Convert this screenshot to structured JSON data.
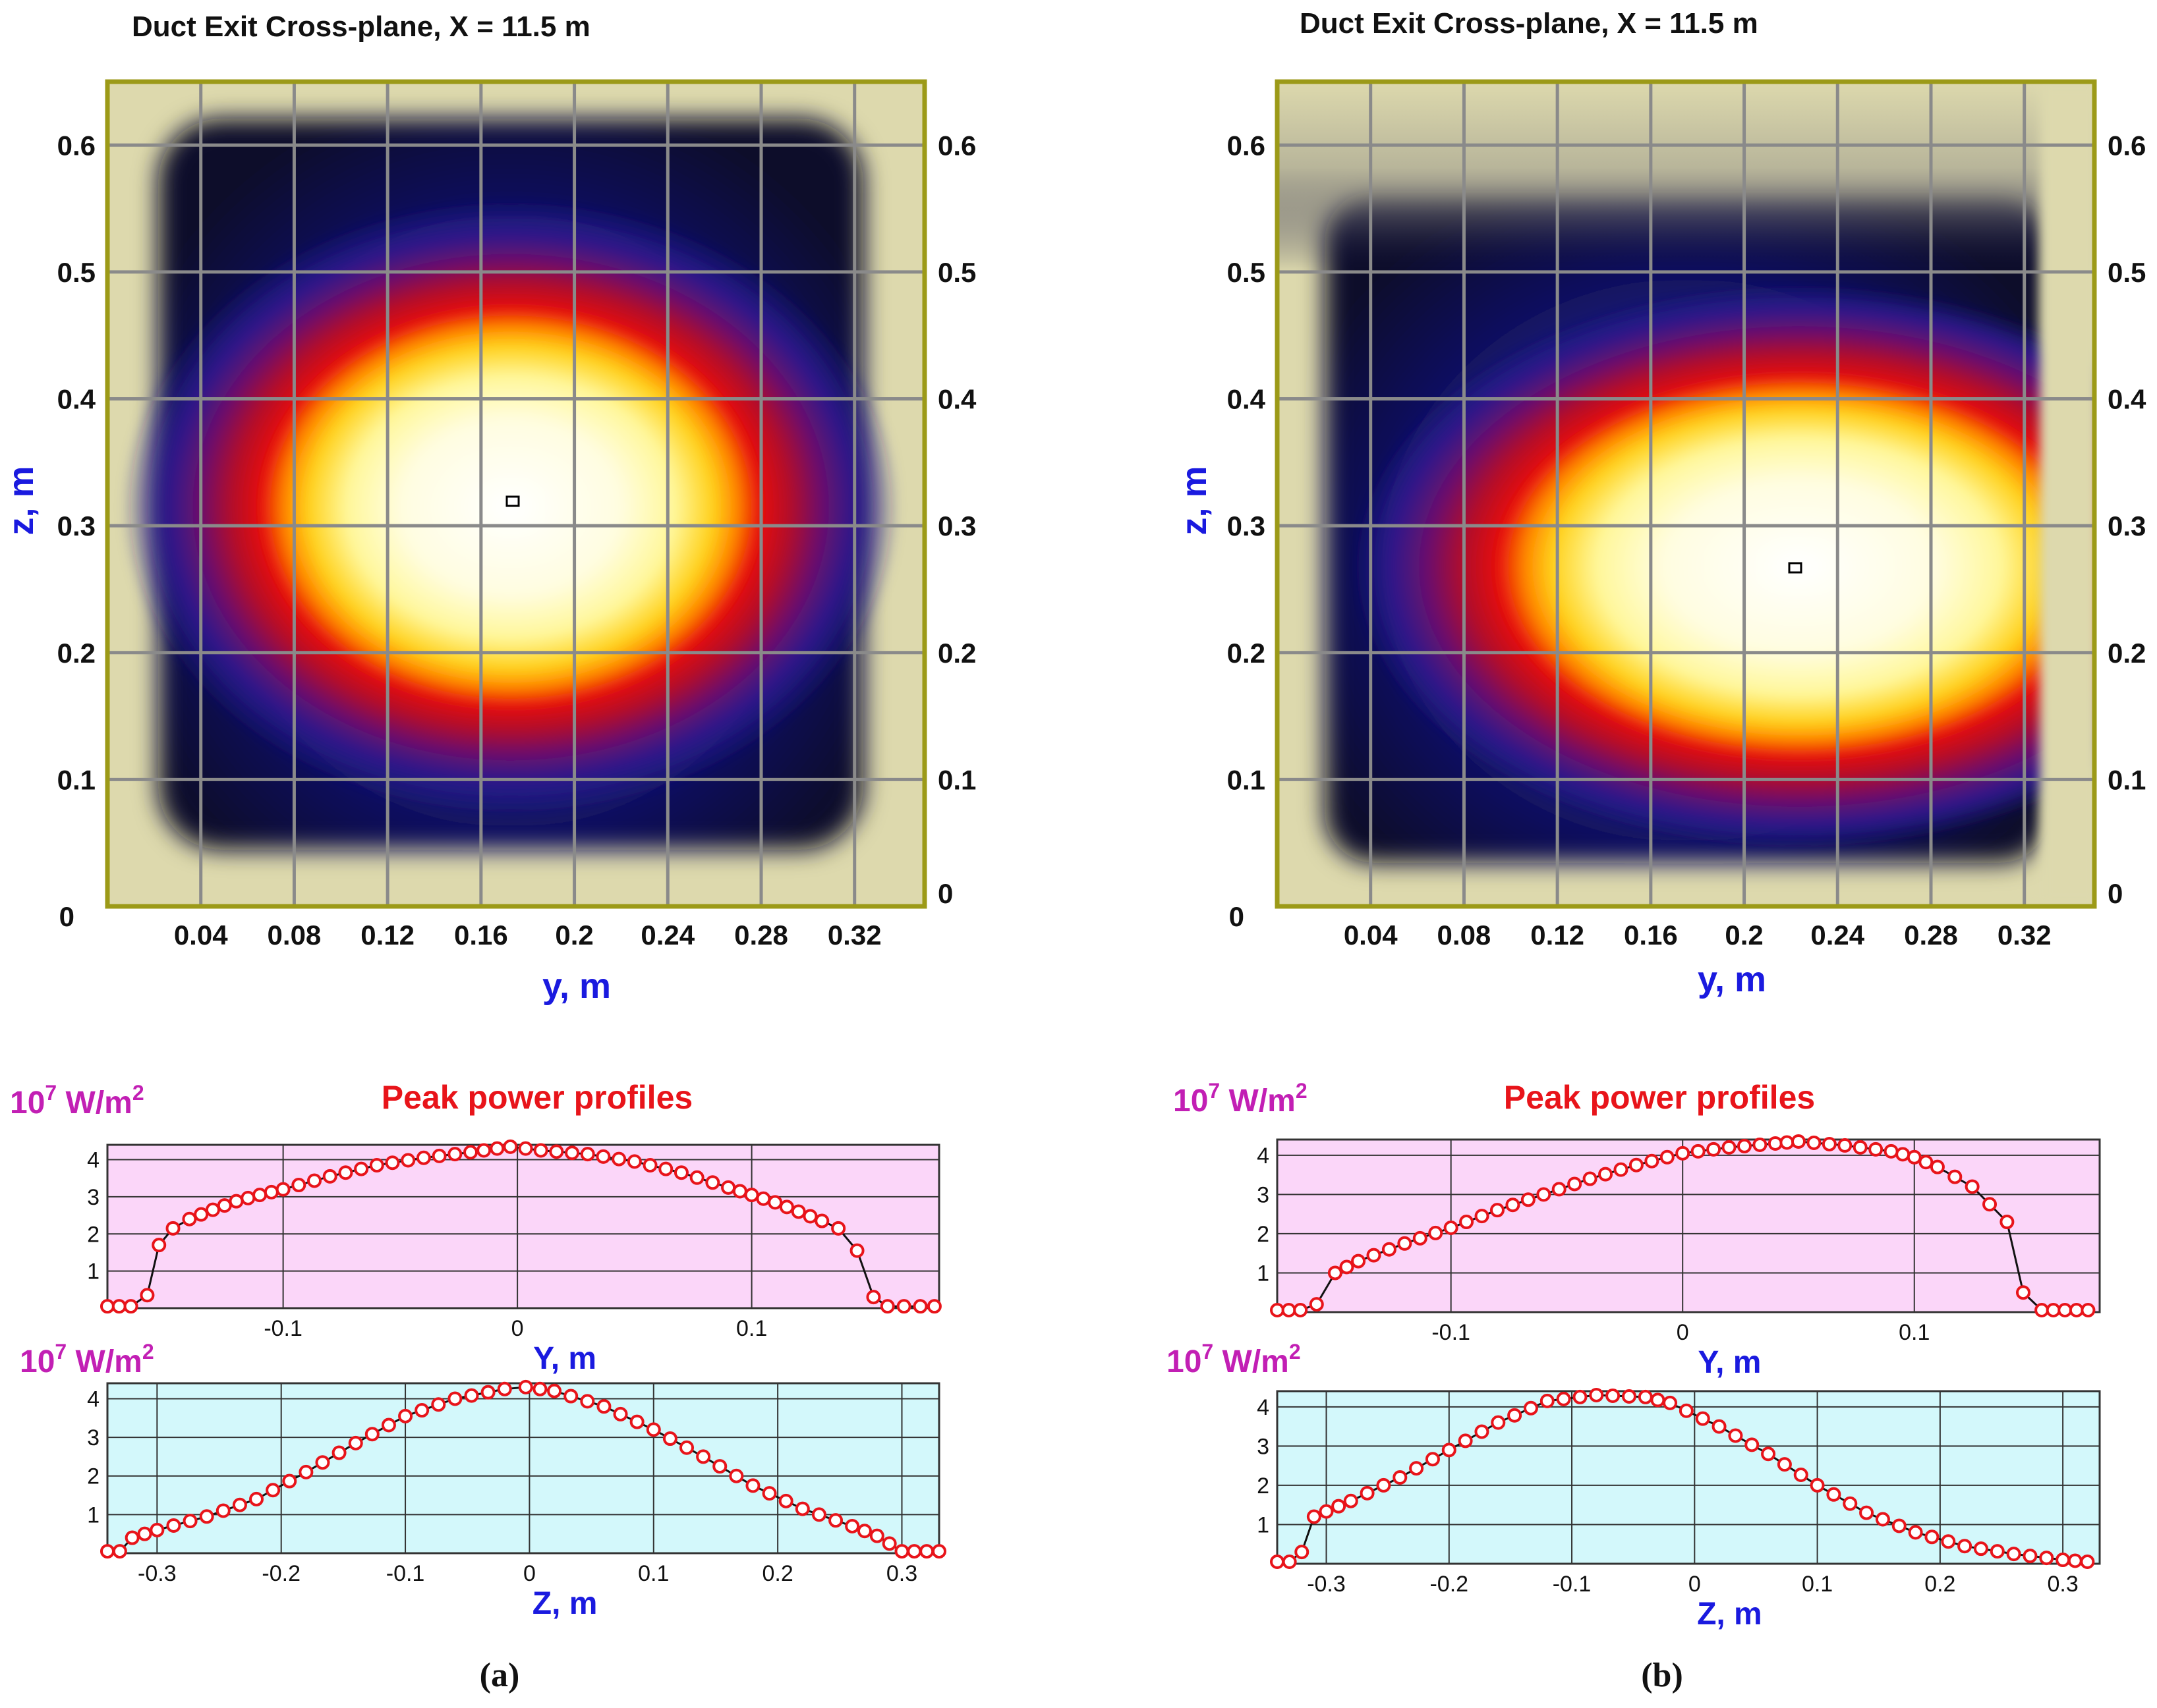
{
  "colors": {
    "frame": "#9c9a18",
    "beige": "#ddd9ad",
    "grid": "#8a8a8a",
    "axis_label": "#1a1adf",
    "unit_label": "#c21fb4",
    "profile_title": "#e8141a",
    "curve": "#e8141a",
    "bg_y_profile": "#fbd6f9",
    "bg_z_profile": "#d3f8fb"
  },
  "panels": [
    {
      "id": "a",
      "caption": "(a)",
      "heatmap": {
        "title": "Duct Exit Cross-plane, X = 11.5 m",
        "xlabel": "y, m",
        "ylabel": "z, m",
        "x_ticks": [
          "0.04",
          "0.08",
          "0.12",
          "0.16",
          "0.2",
          "0.24",
          "0.28",
          "0.32"
        ],
        "y_ticks": [
          "0.1",
          "0.2",
          "0.3",
          "0.4",
          "0.5",
          "0.6"
        ],
        "origin_label": "0",
        "right_zero_label": "0"
      },
      "profile_title": "Peak power profiles",
      "unit_base": "10",
      "unit_exp": "7",
      "unit_mid": " W/m",
      "unit_exp2": "2",
      "y_profile_xlabel": "Y, m",
      "y_profile_x_ticks": [
        "-0.1",
        "0",
        "0.1"
      ],
      "y_profile_y_ticks": [
        "1",
        "2",
        "3",
        "4"
      ],
      "z_profile_xlabel": "Z, m",
      "z_profile_x_ticks": [
        "-0.3",
        "-0.2",
        "-0.1",
        "0",
        "0.1",
        "0.2",
        "0.3"
      ],
      "z_profile_y_ticks": [
        "1",
        "2",
        "3",
        "4"
      ]
    },
    {
      "id": "b",
      "caption": "(b)",
      "heatmap": {
        "title": "Duct Exit Cross-plane, X = 11.5 m",
        "xlabel": "y, m",
        "ylabel": "z, m",
        "x_ticks": [
          "0.04",
          "0.08",
          "0.12",
          "0.16",
          "0.2",
          "0.24",
          "0.28",
          "0.32"
        ],
        "y_ticks": [
          "0.1",
          "0.2",
          "0.3",
          "0.4",
          "0.5",
          "0.6"
        ],
        "origin_label": "0",
        "right_zero_label": "0"
      },
      "profile_title": "Peak power profiles",
      "unit_base": "10",
      "unit_exp": "7",
      "unit_mid": " W/m",
      "unit_exp2": "2",
      "y_profile_xlabel": "Y, m",
      "y_profile_x_ticks": [
        "-0.1",
        "0",
        "0.1"
      ],
      "y_profile_y_ticks": [
        "1",
        "2",
        "3",
        "4"
      ],
      "z_profile_xlabel": "Z, m",
      "z_profile_x_ticks": [
        "-0.3",
        "-0.2",
        "-0.1",
        "0",
        "0.1",
        "0.2",
        "0.3"
      ],
      "z_profile_y_ticks": [
        "1",
        "2",
        "3",
        "4"
      ]
    }
  ],
  "chart_data": [
    {
      "panel": "a",
      "type": "heatmap",
      "title": "Duct Exit Cross-plane, X = 11.5 m",
      "xlabel": "y, m",
      "ylabel": "z, m",
      "xlim": [
        0,
        0.35
      ],
      "ylim": [
        0,
        0.65
      ],
      "peak_marker": {
        "y": 0.174,
        "z": 0.318
      },
      "hot_spot": {
        "center_y": 0.18,
        "center_z": 0.31,
        "half_width_y": 0.128,
        "half_width_z": 0.097
      },
      "colormap": [
        "#ffffff",
        "#fff79a",
        "#ffd11a",
        "#ff8a00",
        "#e8110a",
        "#a20a3c",
        "#4b0d73",
        "#1a1a8c",
        "#0b0b3d"
      ]
    },
    {
      "panel": "a",
      "type": "line",
      "title": "Peak power profiles",
      "xlabel": "Y, m",
      "ylabel": "10^7 W/m^2",
      "xlim": [
        -0.175,
        0.18
      ],
      "ylim": [
        0,
        4.4
      ],
      "x": [
        -0.175,
        -0.17,
        -0.165,
        -0.158,
        -0.153,
        -0.147,
        -0.14,
        -0.13,
        -0.12,
        -0.11,
        -0.1,
        -0.08,
        -0.06,
        -0.04,
        -0.02,
        -0.003,
        0.01,
        0.03,
        0.05,
        0.07,
        0.09,
        0.1,
        0.11,
        0.12,
        0.13,
        0.137,
        0.145,
        0.152,
        0.158,
        0.165,
        0.172,
        0.178
      ],
      "y": [
        0.05,
        0.05,
        0.05,
        0.35,
        1.7,
        2.15,
        2.4,
        2.65,
        2.88,
        3.05,
        3.2,
        3.55,
        3.85,
        4.05,
        4.2,
        4.35,
        4.25,
        4.15,
        3.95,
        3.65,
        3.25,
        3.05,
        2.85,
        2.6,
        2.35,
        2.15,
        1.55,
        0.3,
        0.05,
        0.05,
        0.05,
        0.05
      ]
    },
    {
      "panel": "a",
      "type": "line",
      "xlabel": "Z, m",
      "ylabel": "10^7 W/m^2",
      "xlim": [
        -0.34,
        0.33
      ],
      "ylim": [
        0,
        4.4
      ],
      "x": [
        -0.34,
        -0.33,
        -0.32,
        -0.3,
        -0.26,
        -0.22,
        -0.18,
        -0.14,
        -0.1,
        -0.06,
        -0.02,
        -0.003,
        0.02,
        0.06,
        0.1,
        0.14,
        0.18,
        0.22,
        0.26,
        0.28,
        0.3,
        0.32,
        0.33
      ],
      "y": [
        0.05,
        0.05,
        0.4,
        0.6,
        0.95,
        1.4,
        2.1,
        2.85,
        3.55,
        4.0,
        4.25,
        4.3,
        4.2,
        3.8,
        3.2,
        2.5,
        1.75,
        1.15,
        0.7,
        0.45,
        0.05,
        0.05,
        0.05
      ]
    },
    {
      "panel": "b",
      "type": "heatmap",
      "title": "Duct Exit Cross-plane, X = 11.5 m",
      "xlabel": "y, m",
      "ylabel": "z, m",
      "xlim": [
        0,
        0.35
      ],
      "ylim": [
        0,
        0.65
      ],
      "peak_marker": {
        "y": 0.222,
        "z": 0.262
      },
      "hot_spot": {
        "center_y": 0.225,
        "center_z": 0.265,
        "half_width_y": 0.1,
        "half_width_z": 0.09
      },
      "colormap": [
        "#ffffff",
        "#fff79a",
        "#ffd11a",
        "#ff8a00",
        "#e8110a",
        "#a20a3c",
        "#4b0d73",
        "#1a1a8c",
        "#0b0b3d"
      ]
    },
    {
      "panel": "b",
      "type": "line",
      "title": "Peak power profiles",
      "xlabel": "Y, m",
      "ylabel": "10^7 W/m^2",
      "xlim": [
        -0.175,
        0.18
      ],
      "ylim": [
        0,
        4.4
      ],
      "x": [
        -0.175,
        -0.165,
        -0.158,
        -0.15,
        -0.14,
        -0.12,
        -0.1,
        -0.08,
        -0.06,
        -0.04,
        -0.02,
        0.0,
        0.02,
        0.04,
        0.05,
        0.07,
        0.09,
        0.1,
        0.11,
        0.125,
        0.14,
        0.147,
        0.155,
        0.165,
        0.175
      ],
      "y": [
        0.05,
        0.05,
        0.2,
        1.0,
        1.3,
        1.75,
        2.15,
        2.6,
        3.0,
        3.4,
        3.75,
        4.05,
        4.2,
        4.3,
        4.35,
        4.25,
        4.1,
        3.95,
        3.7,
        3.2,
        2.3,
        0.5,
        0.05,
        0.05,
        0.05
      ]
    },
    {
      "panel": "b",
      "type": "line",
      "xlabel": "Z, m",
      "ylabel": "10^7 W/m^2",
      "xlim": [
        -0.34,
        0.33
      ],
      "ylim": [
        0,
        4.4
      ],
      "x": [
        -0.34,
        -0.33,
        -0.32,
        -0.31,
        -0.28,
        -0.24,
        -0.2,
        -0.16,
        -0.12,
        -0.08,
        -0.04,
        -0.02,
        0.02,
        0.06,
        0.1,
        0.14,
        0.18,
        0.22,
        0.26,
        0.3,
        0.32
      ],
      "y": [
        0.05,
        0.05,
        0.3,
        1.2,
        1.6,
        2.2,
        2.9,
        3.6,
        4.15,
        4.3,
        4.25,
        4.1,
        3.5,
        2.8,
        2.0,
        1.3,
        0.8,
        0.45,
        0.25,
        0.1,
        0.05
      ]
    }
  ]
}
